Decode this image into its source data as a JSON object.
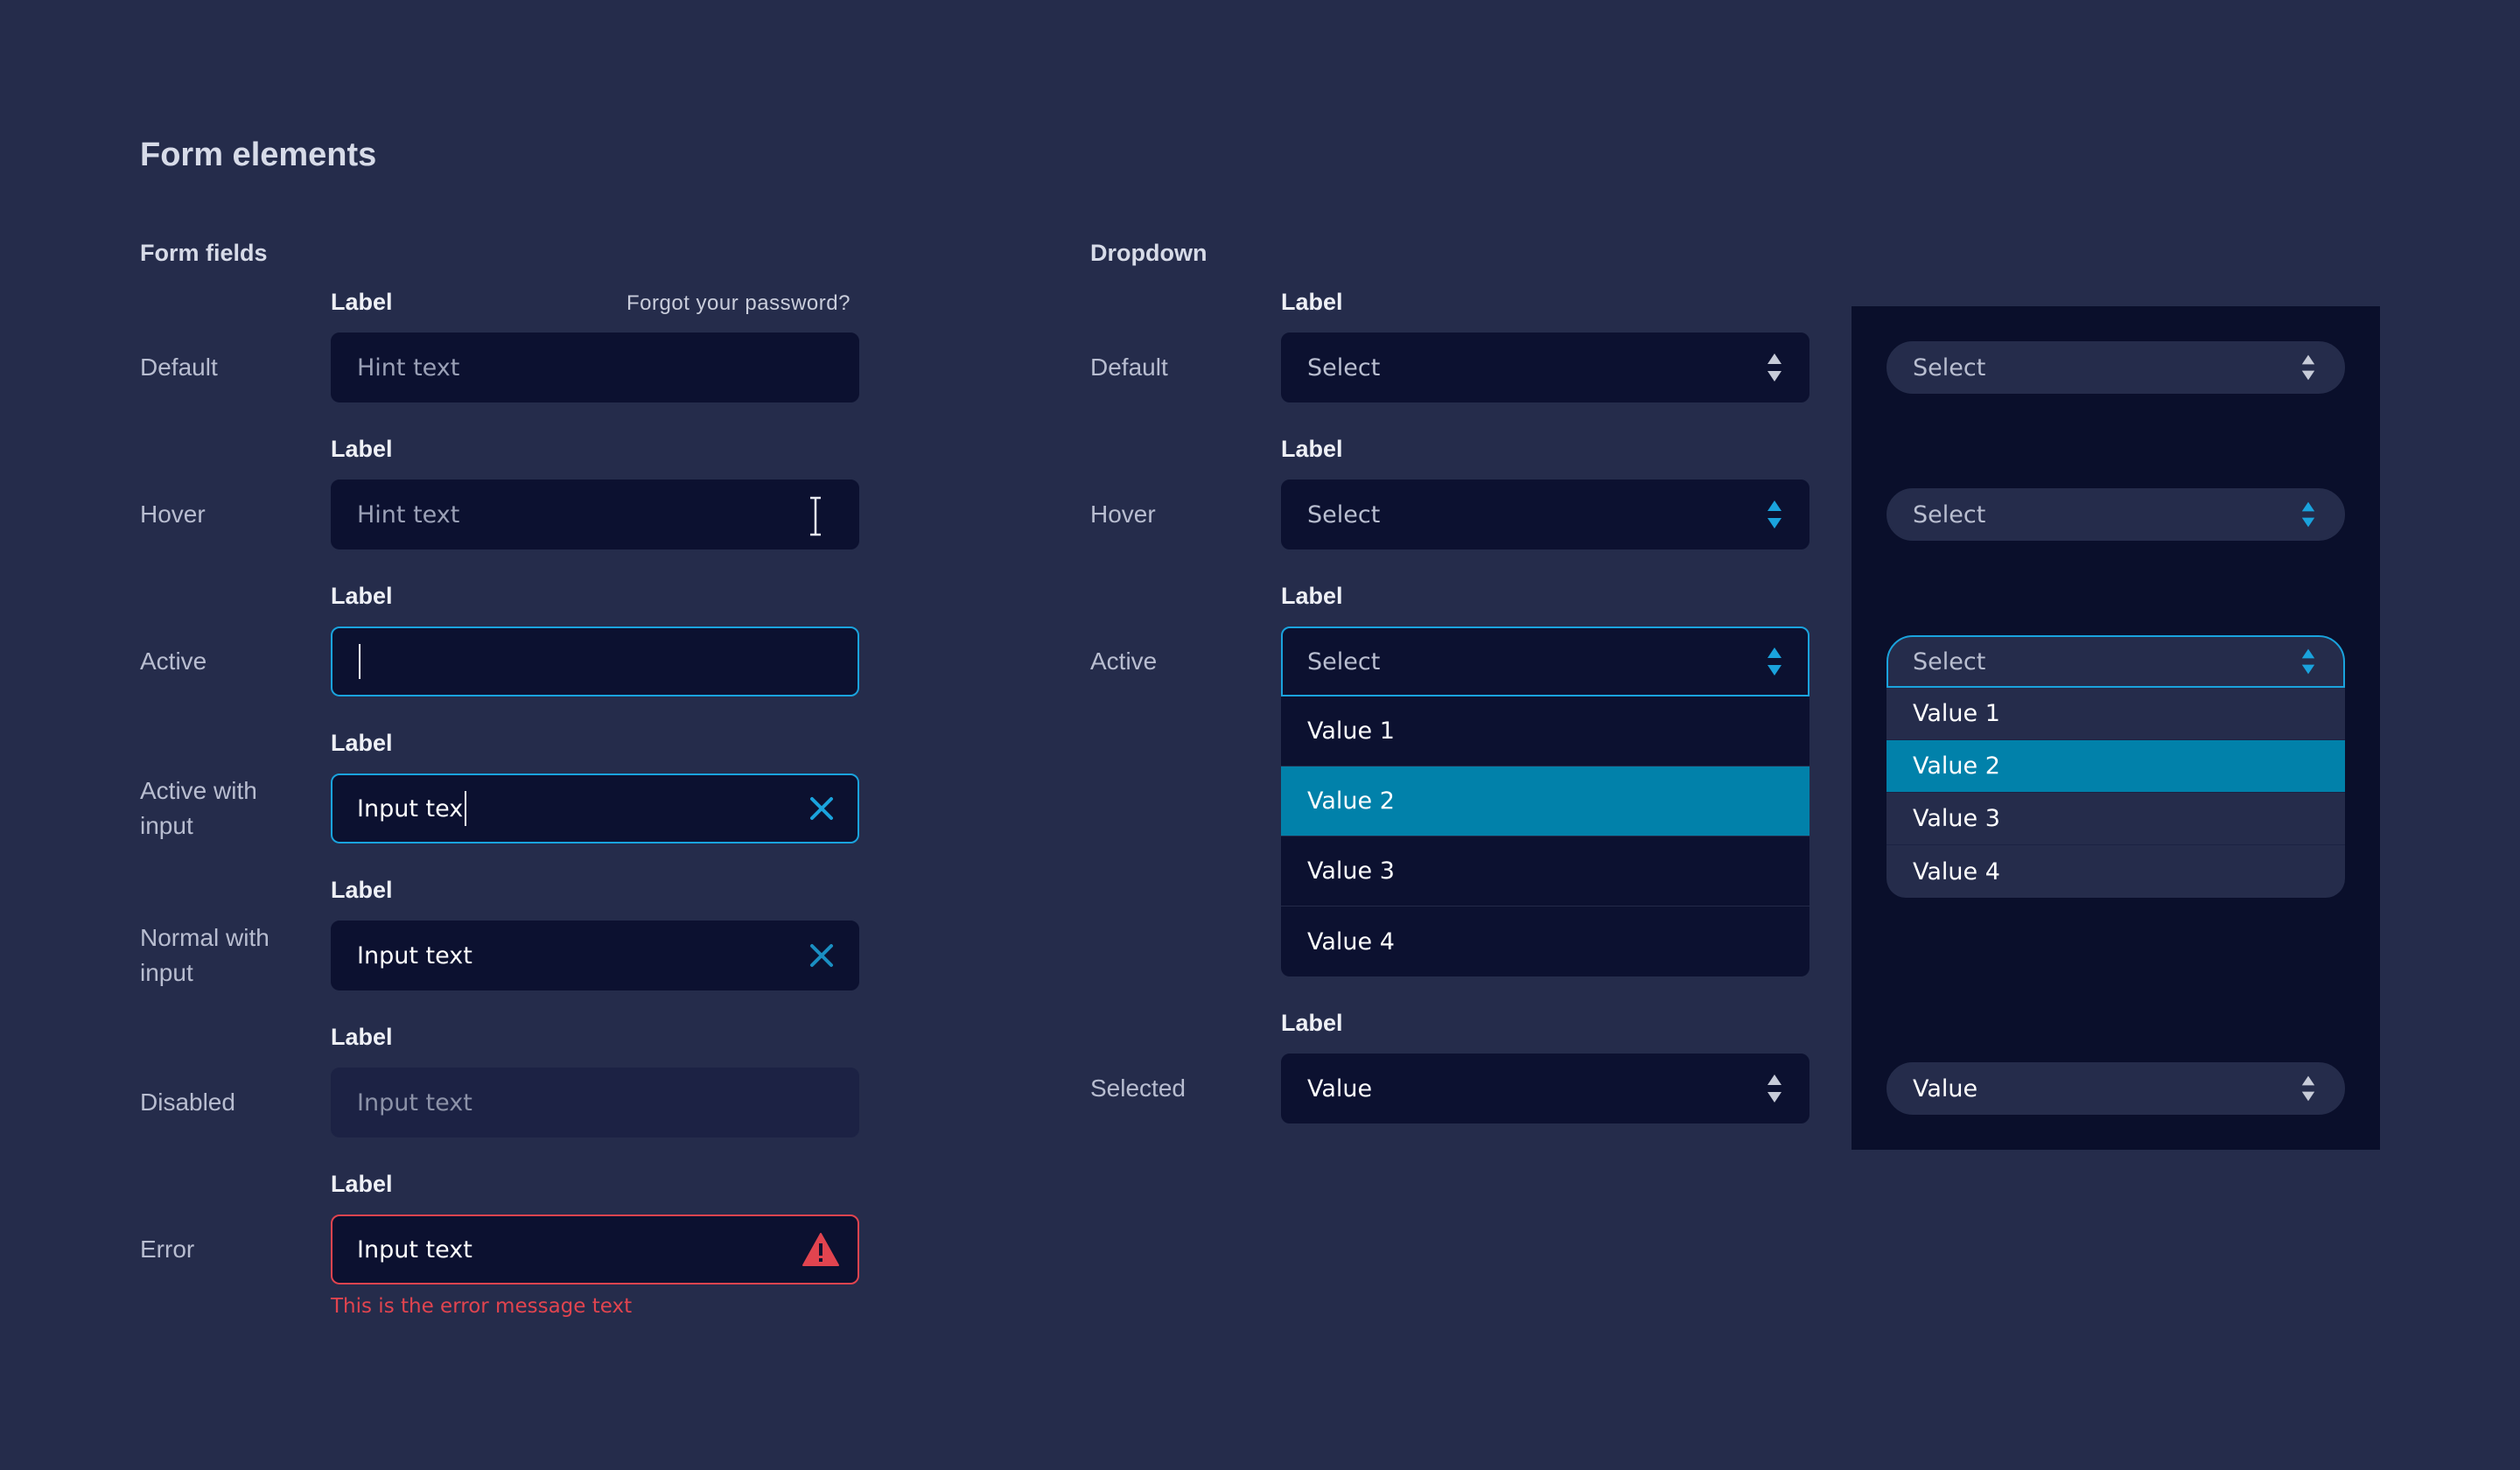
{
  "page_title": "Form elements",
  "form_fields": {
    "heading": "Form fields",
    "forgot_link": "Forgot your password?",
    "rows": [
      {
        "state": "Default",
        "label": "Label",
        "text": "Hint text"
      },
      {
        "state": "Hover",
        "label": "Label",
        "text": "Hint text"
      },
      {
        "state": "Active",
        "label": "Label",
        "text": ""
      },
      {
        "state": "Active with input",
        "label": "Label",
        "text": "Input tex"
      },
      {
        "state": "Normal with input",
        "label": "Label",
        "text": "Input text"
      },
      {
        "state": "Disabled",
        "label": "Label",
        "text": "Input text"
      },
      {
        "state": "Error",
        "label": "Label",
        "text": "Input text"
      }
    ],
    "error_message": "This is the error message text"
  },
  "dropdown": {
    "heading": "Dropdown",
    "rows": [
      {
        "state": "Default",
        "label": "Label",
        "value": "Select"
      },
      {
        "state": "Hover",
        "label": "Label",
        "value": "Select"
      },
      {
        "state": "Active",
        "label": "Label",
        "value": "Select"
      },
      {
        "state": "Selected",
        "label": "Label",
        "value": "Value"
      }
    ],
    "options": [
      "Value 1",
      "Value 2",
      "Value 3",
      "Value 4"
    ],
    "selected_option": "Value 2"
  },
  "colors": {
    "background": "#252c4b",
    "field": "#0c1130",
    "accent": "#1aa3dd",
    "highlight": "#0181aa",
    "error": "#e1444f"
  },
  "icons": {
    "clear": "x-icon",
    "error": "warning-triangle-icon",
    "spinner": "up-down-arrows-icon",
    "cursor": "text-cursor-icon"
  }
}
